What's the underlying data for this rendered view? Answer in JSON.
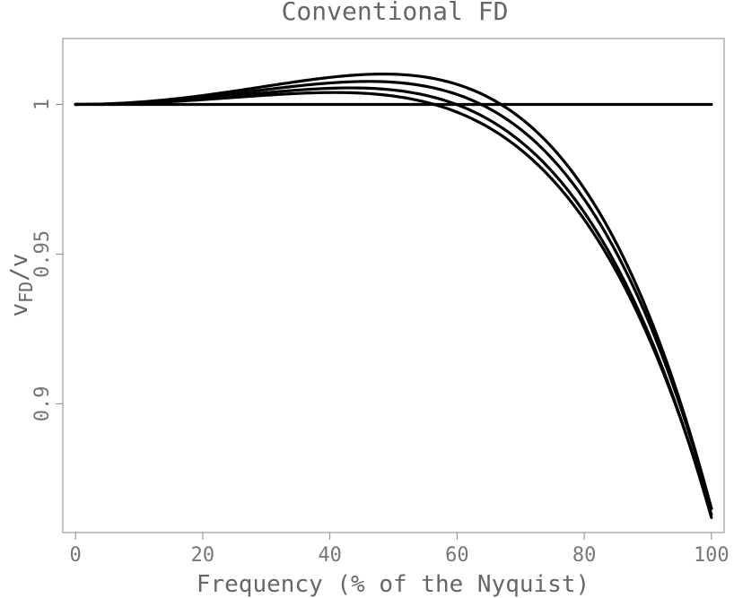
{
  "chart_data": {
    "type": "line",
    "title": "Conventional FD",
    "xlabel": "Frequency (% of the Nyquist)",
    "ylabel_main": "v",
    "ylabel_sub": "FD",
    "ylabel_tail": "/v",
    "xlim": [
      -2,
      102
    ],
    "ylim": [
      0.857,
      1.022
    ],
    "xticks": [
      0,
      20,
      40,
      60,
      80,
      100
    ],
    "xtick_labels": [
      "0",
      "20",
      "40",
      "60",
      "80",
      "100"
    ],
    "yticks": [
      0.9,
      0.95,
      1
    ],
    "ytick_labels": [
      "0.9",
      "0.95",
      "1"
    ],
    "grid": false,
    "series_shape": {
      "drop_exponent": 4.5,
      "rise_exponent": 2,
      "bump_note": "curves share the analytic form y = 1 + bump*(x/100)^2 - drop*(x/100)^4.5"
    },
    "series": [
      {
        "bump": 0.0,
        "drop": 0.0,
        "x_end": 100
      },
      {
        "bump": 0.043,
        "drop": 0.18,
        "x_end": 100
      },
      {
        "bump": 0.053,
        "drop": 0.191,
        "x_end": 100
      },
      {
        "bump": 0.065,
        "drop": 0.2,
        "x_end": 100
      },
      {
        "bump": 0.078,
        "drop": 0.213,
        "x_end": 100
      }
    ]
  }
}
